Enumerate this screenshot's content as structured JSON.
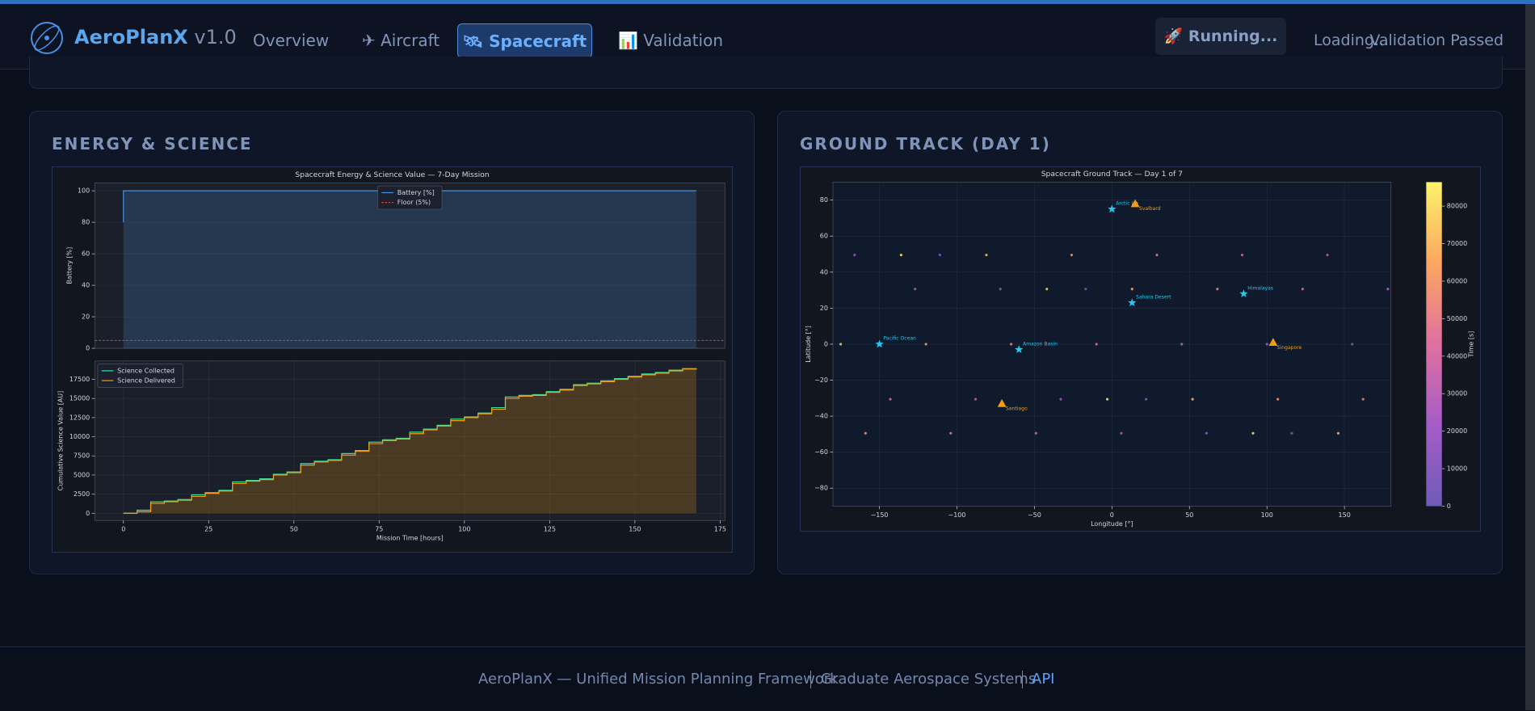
{
  "nav": {
    "brand": "AeroPlanX",
    "version": "v1.0",
    "tabs": [
      "Overview",
      "✈ Aircraft",
      "🛰 Spacecraft",
      "📊 Validation"
    ],
    "active_tab": 2,
    "status": "🚀 Running...",
    "loading": "Loading...",
    "validation": "Validation Passed"
  },
  "panels": [
    {
      "title": "ENERGY & SCIENCE"
    },
    {
      "title": "GROUND TRACK (DAY 1)"
    }
  ],
  "chart_data": [
    {
      "type": "line",
      "title": "Spacecraft Energy & Science Value — 7-Day Mission",
      "ylabel": "Battery [%]",
      "x": [
        0,
        0,
        168
      ],
      "series": [
        {
          "name": "Battery [%]",
          "color": "#4a90d9",
          "values": [
            80,
            100,
            100
          ],
          "fill": true
        },
        {
          "name": "Floor (5%)",
          "color": "#e0483c",
          "dash": true,
          "x": [
            -8.4,
            176.4
          ],
          "values": [
            5,
            5
          ]
        }
      ],
      "xlim": [
        -8.4,
        176.4
      ],
      "ylim": [
        0,
        105
      ],
      "yticks": [
        0,
        20,
        40,
        60,
        80,
        100
      ],
      "grid": true,
      "legend": "upper center"
    },
    {
      "type": "line",
      "step": true,
      "xlabel": "Mission Time [hours]",
      "ylabel": "Cumulative Science Value [AU]",
      "x": [
        0,
        4,
        8,
        12,
        16,
        20,
        24,
        28,
        32,
        36,
        40,
        44,
        48,
        52,
        56,
        60,
        64,
        68,
        72,
        76,
        80,
        84,
        88,
        92,
        96,
        100,
        104,
        108,
        112,
        116,
        120,
        124,
        128,
        132,
        136,
        140,
        144,
        148,
        152,
        156,
        160,
        164,
        168
      ],
      "series": [
        {
          "name": "Science Collected",
          "color": "#2ee6a0",
          "values": [
            0,
            400,
            1500,
            1600,
            1800,
            2400,
            2700,
            3000,
            4100,
            4300,
            4500,
            5100,
            5400,
            6500,
            6800,
            7000,
            7800,
            8200,
            9300,
            9600,
            9800,
            10600,
            11000,
            11500,
            12300,
            12600,
            13100,
            13800,
            15200,
            15400,
            15500,
            15900,
            16200,
            16800,
            17000,
            17300,
            17600,
            17900,
            18200,
            18400,
            18700,
            18900,
            18950
          ]
        },
        {
          "name": "Science Delivered",
          "color": "#f39c12",
          "fill": true,
          "values": [
            0,
            200,
            1300,
            1500,
            1700,
            2200,
            2600,
            2900,
            3900,
            4200,
            4400,
            5000,
            5300,
            6300,
            6700,
            6900,
            7600,
            8100,
            9100,
            9500,
            9700,
            10400,
            10900,
            11400,
            12100,
            12500,
            13000,
            13600,
            15000,
            15300,
            15400,
            15800,
            16100,
            16700,
            16900,
            17200,
            17500,
            17800,
            18100,
            18300,
            18600,
            18850,
            18950
          ]
        }
      ],
      "xlim": [
        -8.4,
        176.4
      ],
      "ylim": [
        -947,
        19897
      ],
      "xticks": [
        0,
        25,
        50,
        75,
        100,
        125,
        150,
        175
      ],
      "yticks": [
        0,
        2500,
        5000,
        7500,
        10000,
        12500,
        15000,
        17500
      ],
      "grid": true,
      "legend": "upper left"
    },
    {
      "type": "scatter",
      "title": "Spacecraft Ground Track — Day 1 of 7",
      "xlabel": "Longitude [°]",
      "ylabel": "Latitude [°]",
      "x": [
        -150,
        -17,
        116,
        -111,
        22,
        155,
        -72,
        61,
        -166,
        -33,
        100,
        -127,
        6,
        139,
        -88,
        45,
        178,
        -49,
        84,
        -143,
        -10,
        123,
        -104,
        29,
        162,
        -65,
        68,
        -159,
        -26,
        107,
        -120,
        13,
        146,
        -81,
        52,
        -175,
        -42,
        91,
        -136,
        -3
      ],
      "y": [
        0,
        30.6,
        -49.5,
        49.5,
        -30.6,
        0,
        30.6,
        -49.5,
        49.5,
        -30.6,
        0,
        30.6,
        -49.5,
        49.5,
        -30.6,
        0,
        30.6,
        -49.5,
        49.5,
        -30.6,
        0,
        30.6,
        -49.5,
        49.5,
        -30.6,
        0,
        30.6,
        -49.5,
        49.5,
        -30.6,
        0,
        30.6,
        -49.5,
        49.5,
        -30.6,
        0,
        30.6,
        -49.5,
        49.5,
        -30.6
      ],
      "c": [
        0,
        2160,
        4320,
        6480,
        8640,
        10800,
        12960,
        15120,
        17280,
        19440,
        21600,
        23760,
        25920,
        28080,
        30240,
        32400,
        34560,
        36720,
        38880,
        41040,
        43200,
        45360,
        47520,
        49680,
        51840,
        54000,
        56160,
        58320,
        60480,
        62640,
        64800,
        66960,
        69120,
        71280,
        73440,
        75600,
        77760,
        79920,
        82080,
        84240
      ],
      "cmap": "plasma",
      "xlim": [
        -180,
        180
      ],
      "ylim": [
        -90,
        90
      ],
      "xticks": [
        {
          "value": -150,
          "label": "−150"
        },
        {
          "value": -100,
          "label": "−100"
        },
        {
          "value": -50,
          "label": "−50"
        },
        0,
        50,
        100,
        150
      ],
      "yticks": [
        {
          "value": -80,
          "label": "−80"
        },
        {
          "value": -60,
          "label": "−60"
        },
        {
          "value": -40,
          "label": "−40"
        },
        {
          "value": -20,
          "label": "−20"
        },
        0,
        20,
        40,
        60,
        80
      ],
      "grid": true,
      "colorbar": {
        "label": "Time [s]",
        "lim": [
          0,
          86400
        ],
        "ticks": [
          0,
          10000,
          20000,
          30000,
          40000,
          50000,
          60000,
          70000,
          80000
        ]
      },
      "targets": {
        "color": "#29c6f0",
        "points": [
          {
            "name": "Arctic Ice",
            "lon": 0,
            "lat": 75
          },
          {
            "name": "Sahara Desert",
            "lon": 13,
            "lat": 23
          },
          {
            "name": "Himalayas",
            "lon": 85,
            "lat": 28
          },
          {
            "name": "Pacific Ocean",
            "lon": -150,
            "lat": 0
          },
          {
            "name": "Amazon Basin",
            "lon": -60,
            "lat": -3
          }
        ]
      },
      "stations": {
        "color": "#f39c12",
        "points": [
          {
            "name": "Svalbard",
            "lon": 15,
            "lat": 78
          },
          {
            "name": "Singapore",
            "lon": 104,
            "lat": 1
          },
          {
            "name": "Santiago",
            "lon": -71,
            "lat": -33
          }
        ]
      }
    }
  ],
  "footer": {
    "items": [
      "AeroPlanX — Unified Mission Planning Framework",
      "Graduate Aerospace Systems"
    ],
    "link": "API"
  }
}
